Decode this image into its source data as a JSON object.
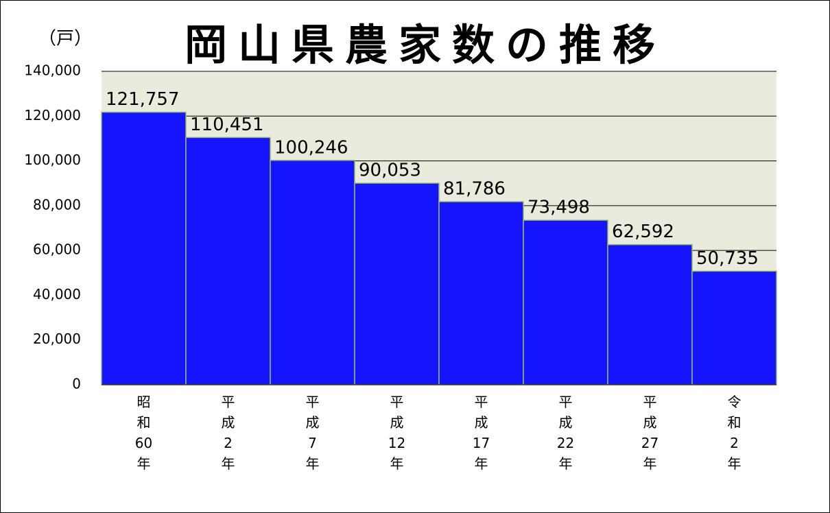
{
  "chart_data": {
    "type": "bar",
    "title": "岡山県農家数の推移",
    "y_unit": "（戸）",
    "categories": [
      "昭和60年",
      "平成2年",
      "平成7年",
      "平成12年",
      "平成17年",
      "平成22年",
      "平成27年",
      "令和2年"
    ],
    "values": [
      121757,
      110451,
      100246,
      90053,
      81786,
      73498,
      62592,
      50735
    ],
    "value_labels": [
      "121,757",
      "110,451",
      "100,246",
      "90,053",
      "81,786",
      "73,498",
      "62,592",
      "50,735"
    ],
    "color": "#1414ff",
    "ylim": [
      0,
      140000
    ],
    "yticks": [
      0,
      {
        "value": 20000,
        "label": "20,000"
      },
      {
        "value": 40000,
        "label": "40,000"
      },
      {
        "value": 60000,
        "label": "60,000"
      },
      {
        "value": 80000,
        "label": "80,000"
      },
      {
        "value": 100000,
        "label": "100,000"
      },
      {
        "value": 120000,
        "label": "120,000"
      },
      {
        "value": 140000,
        "label": "140,000"
      }
    ],
    "grid": true
  }
}
